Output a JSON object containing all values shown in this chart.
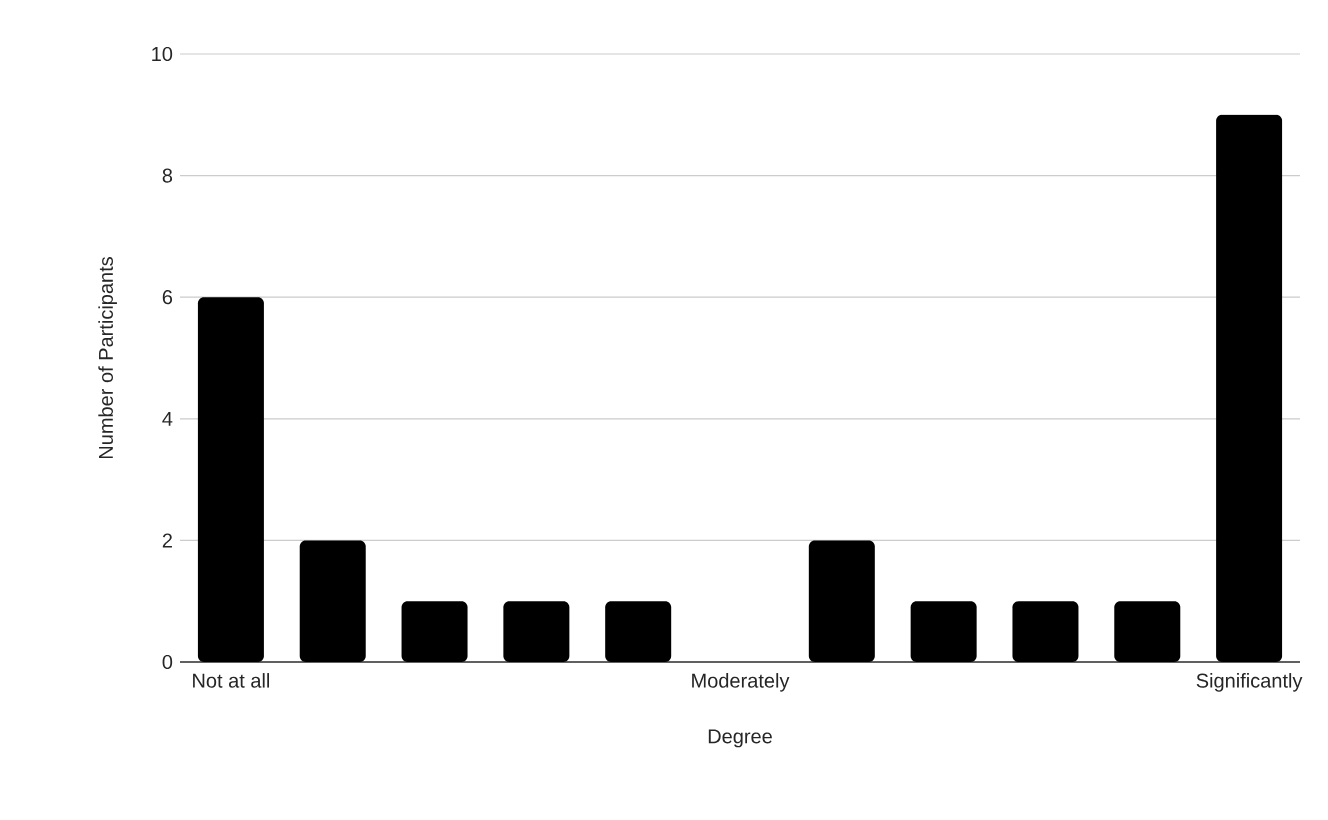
{
  "chart_data": {
    "type": "bar",
    "xlabel": "Degree",
    "ylabel": "Number of Participants",
    "categories": [
      "Not at all",
      null,
      null,
      null,
      null,
      "Moderately",
      null,
      null,
      null,
      null,
      "Significantly"
    ],
    "values": [
      6,
      2,
      1,
      1,
      1,
      0,
      2,
      1,
      1,
      1,
      9
    ],
    "color": "#000000",
    "ylim": [
      0,
      10
    ],
    "yticks": [
      0,
      2,
      4,
      6,
      8,
      10
    ],
    "grid": "y"
  }
}
